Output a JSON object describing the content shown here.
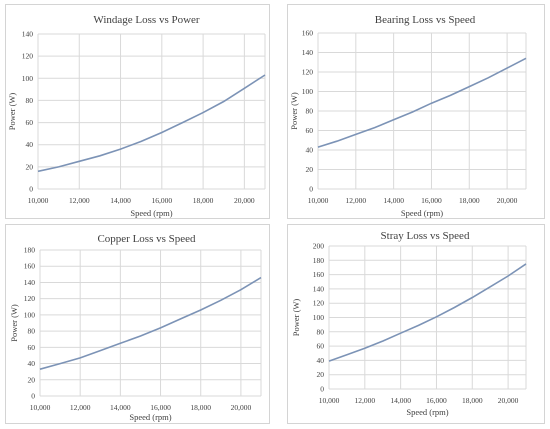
{
  "chart_data": [
    {
      "type": "line",
      "title": "Windage Loss vs Power",
      "xlabel": "Speed (rpm)",
      "ylabel": "Power (W)",
      "xlim": [
        10000,
        21000
      ],
      "ylim": [
        0,
        140
      ],
      "xticks": [
        10000,
        12000,
        14000,
        16000,
        18000,
        20000
      ],
      "yticks": [
        0,
        20,
        40,
        60,
        80,
        100,
        120,
        140
      ],
      "xtick_labels": [
        "10,000",
        "12,000",
        "14,000",
        "16,000",
        "18,000",
        "20,000"
      ],
      "ytick_labels": [
        "0",
        "20",
        "40",
        "60",
        "80",
        "100",
        "120",
        "140"
      ],
      "grid": true,
      "series": [
        {
          "x": [
            10000,
            11000,
            12000,
            13000,
            14000,
            15000,
            16000,
            17000,
            18000,
            19000,
            20000,
            21000
          ],
          "values": [
            16,
            20,
            25,
            30,
            36,
            43,
            51,
            60,
            69,
            79,
            91,
            103
          ]
        }
      ]
    },
    {
      "type": "line",
      "title": "Bearing Loss vs Speed",
      "xlabel": "Speed (rpm)",
      "ylabel": "Power (W)",
      "xlim": [
        10000,
        21000
      ],
      "ylim": [
        0,
        160
      ],
      "xticks": [
        10000,
        12000,
        14000,
        16000,
        18000,
        20000
      ],
      "yticks": [
        0,
        20,
        40,
        60,
        80,
        100,
        120,
        140,
        160
      ],
      "xtick_labels": [
        "10,000",
        "12,000",
        "14,000",
        "16,000",
        "18,000",
        "20,000"
      ],
      "ytick_labels": [
        "0",
        "20",
        "40",
        "60",
        "80",
        "100",
        "120",
        "140",
        "160"
      ],
      "grid": true,
      "series": [
        {
          "x": [
            10000,
            11000,
            12000,
            13000,
            14000,
            15000,
            16000,
            17000,
            18000,
            19000,
            20000,
            21000
          ],
          "values": [
            43,
            49,
            56,
            63,
            71,
            79,
            88,
            96,
            105,
            114,
            124,
            134
          ]
        }
      ]
    },
    {
      "type": "line",
      "title": "Copper Loss vs Speed",
      "xlabel": "Speed (rpm)",
      "ylabel": "Power (W)",
      "xlim": [
        10000,
        21000
      ],
      "ylim": [
        0,
        180
      ],
      "xticks": [
        10000,
        12000,
        14000,
        16000,
        18000,
        20000
      ],
      "yticks": [
        0,
        20,
        40,
        60,
        80,
        100,
        120,
        140,
        160,
        180
      ],
      "xtick_labels": [
        "10,000",
        "12,000",
        "14,000",
        "16,000",
        "18,000",
        "20,000"
      ],
      "ytick_labels": [
        "0",
        "20",
        "40",
        "60",
        "80",
        "100",
        "120",
        "140",
        "160",
        "180"
      ],
      "grid": true,
      "series": [
        {
          "x": [
            10000,
            11000,
            12000,
            13000,
            14000,
            15000,
            16000,
            17000,
            18000,
            19000,
            20000,
            21000
          ],
          "values": [
            33,
            40,
            47,
            56,
            65,
            74,
            84,
            95,
            106,
            118,
            131,
            146
          ]
        }
      ]
    },
    {
      "type": "line",
      "title": "Stray Loss vs Speed",
      "xlabel": "Speed (rpm)",
      "ylabel": "Power (W)",
      "xlim": [
        10000,
        21000
      ],
      "ylim": [
        0,
        200
      ],
      "xticks": [
        10000,
        12000,
        14000,
        16000,
        18000,
        20000
      ],
      "yticks": [
        0,
        20,
        40,
        60,
        80,
        100,
        120,
        140,
        160,
        180,
        200
      ],
      "xtick_labels": [
        "10,000",
        "12,000",
        "14,000",
        "16,000",
        "18,000",
        "20,000"
      ],
      "ytick_labels": [
        "0",
        "20",
        "40",
        "60",
        "80",
        "100",
        "120",
        "140",
        "160",
        "180",
        "200"
      ],
      "grid": true,
      "series": [
        {
          "x": [
            10000,
            11000,
            12000,
            13000,
            14000,
            15000,
            16000,
            17000,
            18000,
            19000,
            20000,
            21000
          ],
          "values": [
            39,
            48,
            57,
            67,
            78,
            89,
            101,
            114,
            128,
            143,
            158,
            175
          ]
        }
      ]
    }
  ],
  "colors": {
    "line": "#7c93b6",
    "grid": "#d9d9d9",
    "text": "#404040",
    "border": "#d4d4d4"
  }
}
